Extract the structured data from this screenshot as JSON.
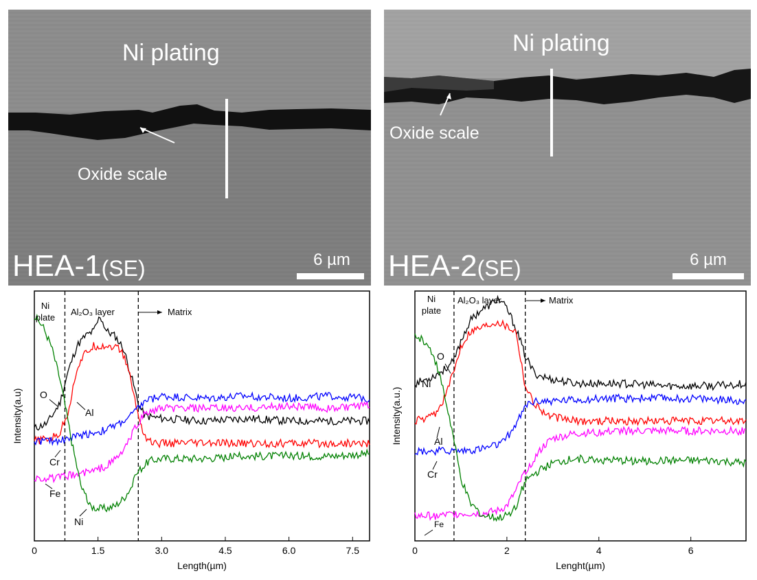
{
  "figure": {
    "sem_panels": [
      {
        "plating_label": "Ni plating",
        "oxide_label": "Oxide scale",
        "sample_label": "HEA-1",
        "mode_label": "(SE)",
        "scale_label": "6 µm"
      },
      {
        "plating_label": "Ni plating",
        "oxide_label": "Oxide scale",
        "sample_label": "HEA-2",
        "mode_label": "(SE)",
        "scale_label": "6 µm"
      }
    ],
    "line_colors": {
      "O": "#000000",
      "Al": "#ff0000",
      "Cr": "#0000ff",
      "Fe": "#ff00ff",
      "Ni": "#008000"
    }
  },
  "chart_data": [
    {
      "type": "line",
      "xlabel": "Length(µm)",
      "ylabel": "Intensity(a.u)",
      "xlim": [
        0,
        7.9
      ],
      "ylim": [
        0,
        100
      ],
      "y_ticks_shown": false,
      "x_tick_labels": [
        "0",
        "1.5",
        "3.0",
        "4.5",
        "6.0",
        "7.5"
      ],
      "x_ticks": [
        0,
        1.5,
        3.0,
        4.5,
        6.0,
        7.5
      ],
      "boundaries": [
        0.72,
        2.45
      ],
      "region_labels": {
        "ni_plate": [
          "Ni",
          "plate"
        ],
        "layer": "Al₂O₃ layer",
        "matrix": "Matrix"
      },
      "series": [
        {
          "name": "O",
          "color": "#000000",
          "x": [
            0,
            0.3,
            0.6,
            0.8,
            1.0,
            1.2,
            1.4,
            1.55,
            1.7,
            1.9,
            2.1,
            2.3,
            2.45,
            2.6,
            3.0,
            4.0,
            5.0,
            6.0,
            7.0,
            7.9
          ],
          "y": [
            45,
            47,
            55,
            68,
            78,
            82,
            84,
            90,
            84,
            82,
            77,
            65,
            55,
            50,
            49,
            48,
            49,
            48,
            48,
            48
          ]
        },
        {
          "name": "Al",
          "color": "#ff0000",
          "x": [
            0,
            0.4,
            0.6,
            0.8,
            0.9,
            1.0,
            1.2,
            1.4,
            1.6,
            1.8,
            2.0,
            2.1,
            2.2,
            2.3,
            2.45,
            2.6,
            2.8,
            3.5,
            5.0,
            6.5,
            7.9
          ],
          "y": [
            40,
            41,
            43,
            52,
            60,
            69,
            75,
            78,
            78,
            78,
            77,
            74,
            70,
            62,
            50,
            42,
            39,
            39,
            39,
            39,
            39
          ]
        },
        {
          "name": "Cr",
          "color": "#0000ff",
          "x": [
            0,
            0.5,
            0.8,
            1.0,
            1.3,
            1.6,
            1.9,
            2.2,
            2.45,
            2.6,
            3.0,
            4.0,
            5.0,
            6.0,
            7.0,
            7.9
          ],
          "y": [
            40,
            40,
            41,
            42,
            43,
            44,
            46,
            49,
            53,
            56,
            58,
            57,
            58,
            57,
            58,
            57
          ]
        },
        {
          "name": "Fe",
          "color": "#ff00ff",
          "x": [
            0,
            0.5,
            0.8,
            1.1,
            1.4,
            1.7,
            2.0,
            2.2,
            2.4,
            2.6,
            3.0,
            4.0,
            5.0,
            6.0,
            7.0,
            7.9
          ],
          "y": [
            25,
            25,
            26,
            27,
            28,
            30,
            34,
            39,
            46,
            51,
            53,
            53,
            53,
            54,
            53,
            54
          ]
        },
        {
          "name": "Ni",
          "color": "#008000",
          "x": [
            0,
            0.2,
            0.4,
            0.6,
            0.75,
            0.9,
            1.1,
            1.3,
            1.5,
            1.7,
            1.9,
            2.1,
            2.3,
            2.45,
            2.7,
            3.0,
            4.0,
            5.0,
            6.0,
            7.0,
            7.9
          ],
          "y": [
            90,
            86,
            78,
            65,
            52,
            38,
            22,
            14,
            13,
            13,
            14,
            17,
            22,
            28,
            32,
            33,
            33,
            34,
            34,
            34,
            35
          ]
        }
      ]
    },
    {
      "type": "line",
      "xlabel": "Lenght(µm)",
      "ylabel": "Intensity(a.u.)",
      "xlim": [
        0,
        7.2
      ],
      "ylim": [
        0,
        100
      ],
      "y_ticks_shown": false,
      "x_tick_labels": [
        "0",
        "2",
        "4",
        "6"
      ],
      "x_ticks": [
        0,
        2,
        4,
        6
      ],
      "boundaries": [
        0.85,
        2.4
      ],
      "region_labels": {
        "ni_plate": [
          "Ni",
          "plate"
        ],
        "layer": "Al₂O₃ layer",
        "matrix": "Matrix"
      },
      "series": [
        {
          "name": "O",
          "color": "#000000",
          "x": [
            0,
            0.3,
            0.6,
            0.85,
            1.0,
            1.2,
            1.4,
            1.6,
            1.8,
            2.0,
            2.2,
            2.4,
            2.6,
            2.9,
            3.5,
            4.5,
            5.5,
            6.5,
            7.2
          ],
          "y": [
            63,
            65,
            68,
            72,
            80,
            88,
            92,
            94,
            97,
            93,
            85,
            74,
            67,
            65,
            63,
            63,
            62,
            62,
            63
          ]
        },
        {
          "name": "Al",
          "color": "#ff0000",
          "x": [
            0,
            0.3,
            0.5,
            0.7,
            0.85,
            1.0,
            1.2,
            1.5,
            1.8,
            2.0,
            2.2,
            2.4,
            2.6,
            2.9,
            3.5,
            4.5,
            5.5,
            6.5,
            7.2
          ],
          "y": [
            48,
            49,
            52,
            60,
            68,
            78,
            84,
            86,
            88,
            86,
            84,
            62,
            55,
            50,
            48,
            48,
            48,
            48,
            48
          ]
        },
        {
          "name": "Cr",
          "color": "#0000ff",
          "x": [
            0,
            0.5,
            1.0,
            1.5,
            1.9,
            2.1,
            2.3,
            2.45,
            2.7,
            3.0,
            4.0,
            5.0,
            6.0,
            7.2
          ],
          "y": [
            36,
            36,
            36,
            37,
            39,
            44,
            50,
            55,
            56,
            56,
            57,
            57,
            57,
            56
          ]
        },
        {
          "name": "Fe",
          "color": "#ff00ff",
          "x": [
            0,
            0.5,
            1.0,
            1.5,
            1.8,
            2.0,
            2.2,
            2.4,
            2.6,
            2.8,
            3.0,
            3.5,
            4.5,
            5.5,
            6.5,
            7.2
          ],
          "y": [
            10,
            10,
            11,
            11,
            12,
            14,
            20,
            28,
            33,
            38,
            41,
            43,
            44,
            44,
            44,
            44
          ]
        },
        {
          "name": "Ni",
          "color": "#008000",
          "x": [
            0,
            0.2,
            0.4,
            0.6,
            0.8,
            1.0,
            1.2,
            1.5,
            1.8,
            2.0,
            2.2,
            2.4,
            2.7,
            3.0,
            3.5,
            4.5,
            5.5,
            6.5,
            7.2
          ],
          "y": [
            82,
            80,
            75,
            62,
            45,
            25,
            15,
            10,
            9,
            10,
            14,
            24,
            28,
            31,
            33,
            32,
            32,
            32,
            31
          ]
        }
      ]
    }
  ]
}
